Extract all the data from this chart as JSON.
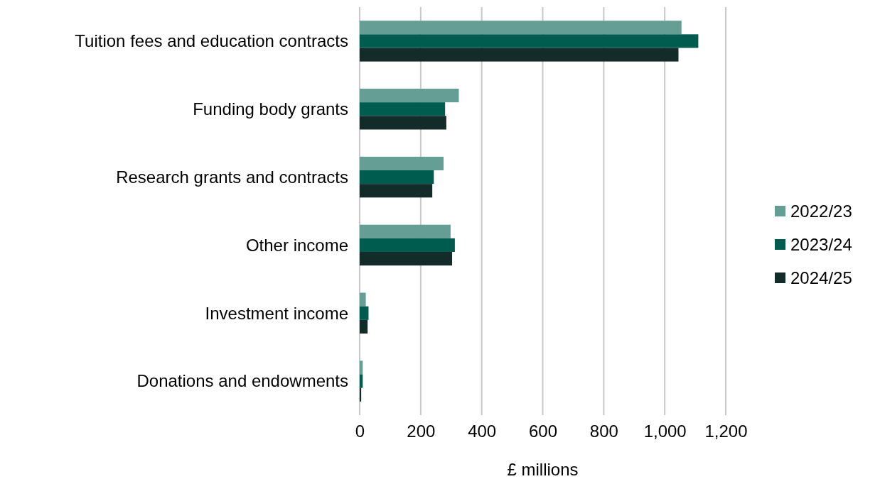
{
  "chart_data": {
    "type": "bar",
    "orientation": "horizontal",
    "xlabel": "£ millions",
    "categories": [
      "Tuition fees and education contracts",
      "Funding body grants",
      "Research grants and contracts",
      "Other income",
      "Investment income",
      "Donations and endowments"
    ],
    "series": [
      {
        "name": "2022/23",
        "color": "#659e94",
        "values": [
          1055,
          325,
          275,
          298,
          20,
          10
        ]
      },
      {
        "name": "2023/24",
        "color": "#005c4e",
        "values": [
          1110,
          280,
          243,
          312,
          29,
          10
        ]
      },
      {
        "name": "2024/25",
        "color": "#132b29",
        "values": [
          1045,
          284,
          238,
          303,
          26,
          5
        ]
      }
    ],
    "xlim": [
      0,
      1200
    ],
    "xticks": [
      0,
      200,
      400,
      {
        "value": 600,
        "label": "600"
      },
      800,
      {
        "value": 1000,
        "label": "1,000"
      },
      {
        "value": 1200,
        "label": "1,200"
      }
    ],
    "grid": "x",
    "legend": "right"
  }
}
